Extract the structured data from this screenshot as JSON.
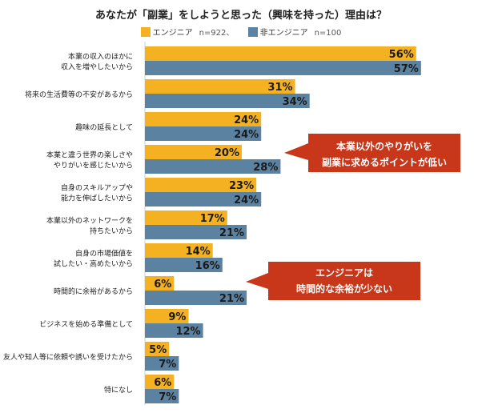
{
  "title": "あなたが「副業」をしようと思った（興味を持った）理由は？",
  "legend": {
    "items": [
      {
        "label": "エンジニア",
        "n": "n=922、",
        "color": "#F4B223"
      },
      {
        "label": "非エンジニア",
        "n": "n=100",
        "color": "#5B82A0"
      }
    ]
  },
  "callouts": [
    {
      "lines": [
        "本業以外のやりがいを",
        "副業に求めるポイントが低い"
      ]
    },
    {
      "lines": [
        "エンジニアは",
        "時間的な余裕が少ない"
      ]
    }
  ],
  "chart_data": {
    "type": "bar",
    "orientation": "horizontal",
    "title": "あなたが「副業」をしようと思った（興味を持った）理由は？",
    "categories": [
      "本業の収入のほかに\n収入を増やしたいから",
      "将来の生活費等の不安があるから",
      "趣味の延長として",
      "本業と違う世界の楽しさや\nやりがいを感じたいから",
      "自身のスキルアップや\n能力を伸ばしたいから",
      "本業以外のネットワークを\n持ちたいから",
      "自身の市場価値を\n試したい・高めたいから",
      "時間的に余裕があるから",
      "ビジネスを始める準備として",
      "友人や知人等に依頼や誘いを受けたから",
      "特になし"
    ],
    "series": [
      {
        "name": "エンジニア",
        "color": "#F4B223",
        "values": [
          56,
          31,
          24,
          20,
          23,
          17,
          14,
          6,
          9,
          5,
          6
        ]
      },
      {
        "name": "非エンジニア",
        "color": "#5B82A0",
        "values": [
          57,
          34,
          24,
          28,
          24,
          21,
          16,
          21,
          12,
          7,
          7
        ]
      }
    ],
    "value_suffix": "%",
    "xlim": [
      0,
      60
    ],
    "grid": false
  }
}
